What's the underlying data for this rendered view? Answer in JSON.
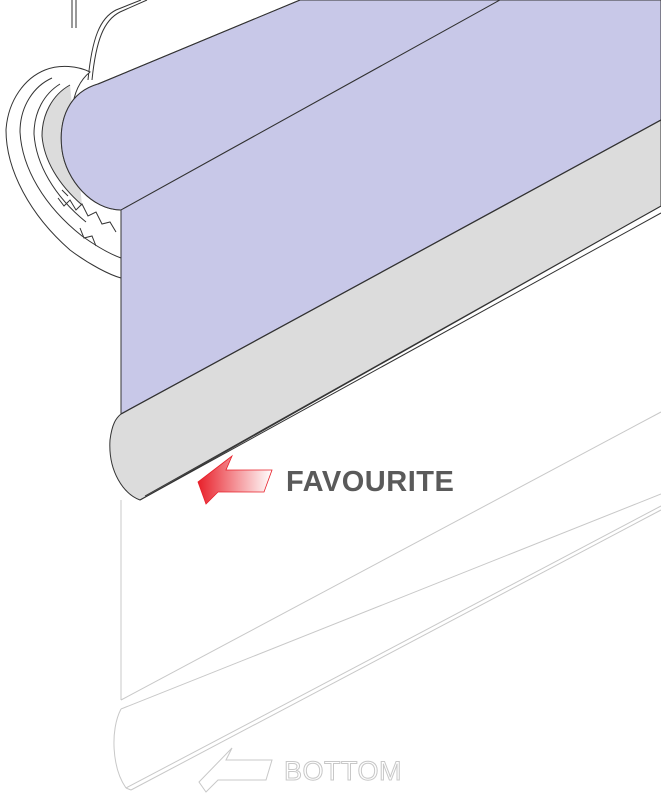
{
  "labels": {
    "favourite": "FAVOURITE",
    "bottom": "BOTTOM"
  },
  "colors": {
    "fabric": "#c8c8e8",
    "rail": "#dcdcdc",
    "stroke": "#333333",
    "ghost": "#c8c8c8",
    "arrow_accent": "#e8202a",
    "favourite_text": "#5a5a5a",
    "bottom_text": "#d0d0d0"
  },
  "icons": {
    "favourite_arrow": "arrow-left-icon",
    "bottom_arrow": "arrow-left-outline-icon"
  }
}
